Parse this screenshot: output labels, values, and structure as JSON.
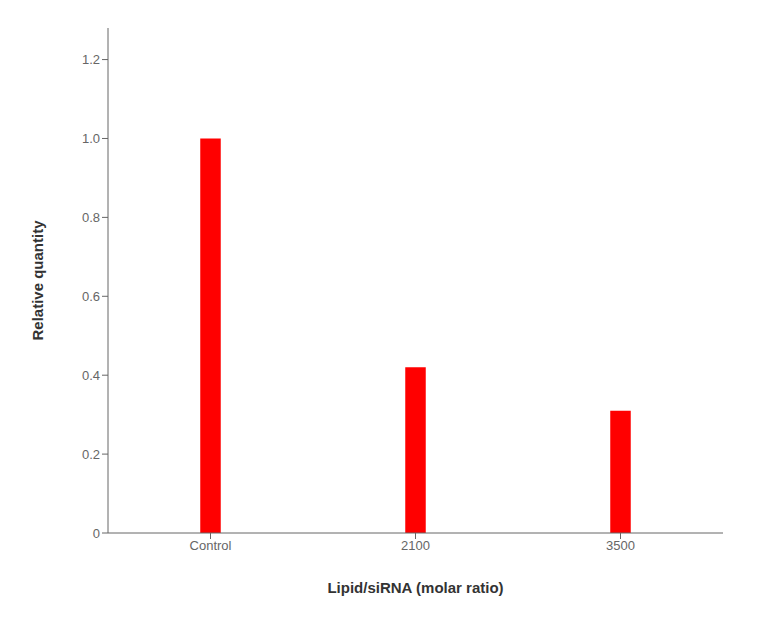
{
  "chart_data": {
    "type": "bar",
    "categories": [
      "Control",
      "2100",
      "3500"
    ],
    "values": [
      1.0,
      0.42,
      0.31
    ],
    "color": "#ff0000",
    "xlabel": "Lipid/siRNA (molar ratio)",
    "ylabel": "Relative quantity",
    "ylim": [
      0,
      1.28
    ],
    "yticks": [
      0,
      0.2,
      0.4,
      0.6,
      0.8,
      {
        "value": 1.0,
        "label": "1.0"
      },
      1.2
    ],
    "grid": false
  }
}
